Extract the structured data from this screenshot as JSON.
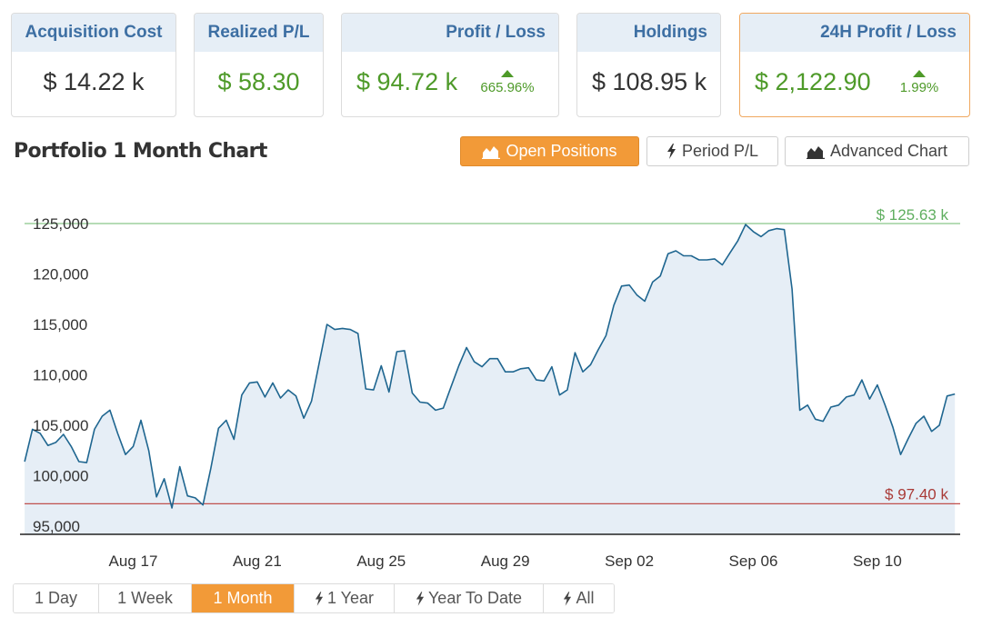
{
  "cards": {
    "acquisition": {
      "label": "Acquisition Cost",
      "value": "$ 14.22 k"
    },
    "realized": {
      "label": "Realized P/L",
      "value": "$ 58.30"
    },
    "profit": {
      "label": "Profit / Loss",
      "value": "$ 94.72 k",
      "delta": "665.96%"
    },
    "holdings": {
      "label": "Holdings",
      "value": "$ 108.95 k"
    },
    "profit24h": {
      "label": "24H Profit / Loss",
      "value": "$ 2,122.90",
      "delta": "1.99%"
    }
  },
  "chart_title": "Portfolio 1 Month Chart",
  "view_buttons": {
    "open_positions": "Open Positions",
    "period_pl": "Period P/L",
    "advanced_chart": "Advanced Chart"
  },
  "range_buttons": {
    "day": "1 Day",
    "week": "1 Week",
    "month": "1 Month",
    "year": "1 Year",
    "ytd": "Year To Date",
    "all": "All"
  },
  "colors": {
    "accent": "#f29a38",
    "header_bg": "#e6eef6",
    "header_text": "#3d6fa3",
    "positive": "#4e9a29",
    "line": "#1f6690",
    "area": "#e6eef6",
    "max_line": "#8bc88b",
    "min_line": "#c0504d"
  },
  "chart_data": {
    "type": "area",
    "title": "",
    "xlabel": "",
    "ylabel": "",
    "x_range": [
      "2023-08-13",
      "2023-09-13"
    ],
    "ylim": [
      94000,
      126000
    ],
    "y_ticks": [
      95000,
      100000,
      105000,
      110000,
      115000,
      120000,
      125000
    ],
    "y_tick_labels": [
      "95,000",
      "100,000",
      "105,000",
      "110,000",
      "115,000",
      "120,000",
      "125,000"
    ],
    "x_tick_labels": [
      {
        "date": "2023-08-17",
        "label": "Aug 17"
      },
      {
        "date": "2023-08-21",
        "label": "Aug 21"
      },
      {
        "date": "2023-08-25",
        "label": "Aug 25"
      },
      {
        "date": "2023-08-29",
        "label": "Aug 29"
      },
      {
        "date": "2023-09-02",
        "label": "Sep 02"
      },
      {
        "date": "2023-09-06",
        "label": "Sep 06"
      },
      {
        "date": "2023-09-10",
        "label": "Sep 10"
      }
    ],
    "max_line": {
      "value": 125630,
      "label": "$ 125.63 k"
    },
    "min_line": {
      "value": 97400,
      "label": "$ 97.40 k"
    },
    "series": [
      {
        "name": "",
        "points": [
          [
            "2023-08-13 12:00",
            101400
          ],
          [
            "2023-08-13 18:00",
            104600
          ],
          [
            "2023-08-14 00:00",
            104200
          ],
          [
            "2023-08-14 06:00",
            103000
          ],
          [
            "2023-08-14 12:00",
            103300
          ],
          [
            "2023-08-14 18:00",
            104100
          ],
          [
            "2023-08-15 00:00",
            102900
          ],
          [
            "2023-08-15 06:00",
            101400
          ],
          [
            "2023-08-15 12:00",
            101300
          ],
          [
            "2023-08-15 18:00",
            104600
          ],
          [
            "2023-08-16 00:00",
            105900
          ],
          [
            "2023-08-16 06:00",
            106500
          ],
          [
            "2023-08-16 12:00",
            104200
          ],
          [
            "2023-08-16 18:00",
            102100
          ],
          [
            "2023-08-17 00:00",
            102900
          ],
          [
            "2023-08-17 06:00",
            105500
          ],
          [
            "2023-08-17 12:00",
            102500
          ],
          [
            "2023-08-17 18:00",
            97900
          ],
          [
            "2023-08-18 00:00",
            99700
          ],
          [
            "2023-08-18 06:00",
            96800
          ],
          [
            "2023-08-18 12:00",
            100900
          ],
          [
            "2023-08-18 18:00",
            98000
          ],
          [
            "2023-08-19 00:00",
            97800
          ],
          [
            "2023-08-19 06:00",
            97100
          ],
          [
            "2023-08-19 12:00",
            100700
          ],
          [
            "2023-08-19 18:00",
            104700
          ],
          [
            "2023-08-20 00:00",
            105500
          ],
          [
            "2023-08-20 06:00",
            103600
          ],
          [
            "2023-08-20 12:00",
            108000
          ],
          [
            "2023-08-20 18:00",
            109200
          ],
          [
            "2023-08-21 00:00",
            109300
          ],
          [
            "2023-08-21 06:00",
            107800
          ],
          [
            "2023-08-21 12:00",
            109200
          ],
          [
            "2023-08-21 18:00",
            107700
          ],
          [
            "2023-08-22 00:00",
            108500
          ],
          [
            "2023-08-22 06:00",
            107900
          ],
          [
            "2023-08-22 12:00",
            105700
          ],
          [
            "2023-08-22 18:00",
            107400
          ],
          [
            "2023-08-23 00:00",
            111200
          ],
          [
            "2023-08-23 06:00",
            115000
          ],
          [
            "2023-08-23 12:00",
            114500
          ],
          [
            "2023-08-23 18:00",
            114600
          ],
          [
            "2023-08-24 00:00",
            114500
          ],
          [
            "2023-08-24 06:00",
            114100
          ],
          [
            "2023-08-24 12:00",
            108600
          ],
          [
            "2023-08-24 18:00",
            108500
          ],
          [
            "2023-08-25 00:00",
            110900
          ],
          [
            "2023-08-25 06:00",
            108300
          ],
          [
            "2023-08-25 12:00",
            112300
          ],
          [
            "2023-08-25 18:00",
            112400
          ],
          [
            "2023-08-26 00:00",
            108200
          ],
          [
            "2023-08-26 06:00",
            107300
          ],
          [
            "2023-08-26 12:00",
            107200
          ],
          [
            "2023-08-26 18:00",
            106500
          ],
          [
            "2023-08-27 00:00",
            106700
          ],
          [
            "2023-08-27 06:00",
            108800
          ],
          [
            "2023-08-27 12:00",
            110900
          ],
          [
            "2023-08-27 18:00",
            112700
          ],
          [
            "2023-08-28 00:00",
            111300
          ],
          [
            "2023-08-28 06:00",
            110800
          ],
          [
            "2023-08-28 12:00",
            111600
          ],
          [
            "2023-08-28 18:00",
            111600
          ],
          [
            "2023-08-29 00:00",
            110300
          ],
          [
            "2023-08-29 06:00",
            110300
          ],
          [
            "2023-08-29 12:00",
            110600
          ],
          [
            "2023-08-29 18:00",
            110700
          ],
          [
            "2023-08-30 00:00",
            109500
          ],
          [
            "2023-08-30 06:00",
            109400
          ],
          [
            "2023-08-30 12:00",
            110800
          ],
          [
            "2023-08-30 18:00",
            108000
          ],
          [
            "2023-08-31 00:00",
            108500
          ],
          [
            "2023-08-31 06:00",
            112200
          ],
          [
            "2023-08-31 12:00",
            110300
          ],
          [
            "2023-08-31 18:00",
            111000
          ],
          [
            "2023-09-01 00:00",
            112500
          ],
          [
            "2023-09-01 06:00",
            113900
          ],
          [
            "2023-09-01 12:00",
            116900
          ],
          [
            "2023-09-01 18:00",
            118800
          ],
          [
            "2023-09-02 00:00",
            118900
          ],
          [
            "2023-09-02 06:00",
            117900
          ],
          [
            "2023-09-02 12:00",
            117300
          ],
          [
            "2023-09-02 18:00",
            119200
          ],
          [
            "2023-09-03 00:00",
            119800
          ],
          [
            "2023-09-03 06:00",
            122000
          ],
          [
            "2023-09-03 12:00",
            122300
          ],
          [
            "2023-09-03 18:00",
            121800
          ],
          [
            "2023-09-04 00:00",
            121800
          ],
          [
            "2023-09-04 06:00",
            121400
          ],
          [
            "2023-09-04 12:00",
            121400
          ],
          [
            "2023-09-04 18:00",
            121500
          ],
          [
            "2023-09-05 00:00",
            120900
          ],
          [
            "2023-09-05 06:00",
            122100
          ],
          [
            "2023-09-05 12:00",
            123300
          ],
          [
            "2023-09-05 18:00",
            124900
          ],
          [
            "2023-09-06 00:00",
            124200
          ],
          [
            "2023-09-06 06:00",
            123700
          ],
          [
            "2023-09-06 12:00",
            124300
          ],
          [
            "2023-09-06 18:00",
            124500
          ],
          [
            "2023-09-07 00:00",
            124400
          ],
          [
            "2023-09-07 06:00",
            118500
          ],
          [
            "2023-09-07 12:00",
            106500
          ],
          [
            "2023-09-07 18:00",
            107000
          ],
          [
            "2023-09-08 00:00",
            105600
          ],
          [
            "2023-09-08 06:00",
            105400
          ],
          [
            "2023-09-08 12:00",
            106800
          ],
          [
            "2023-09-08 18:00",
            107000
          ],
          [
            "2023-09-09 00:00",
            107800
          ],
          [
            "2023-09-09 06:00",
            108000
          ],
          [
            "2023-09-09 12:00",
            109500
          ],
          [
            "2023-09-09 18:00",
            107600
          ],
          [
            "2023-09-10 00:00",
            109000
          ],
          [
            "2023-09-10 06:00",
            107000
          ],
          [
            "2023-09-10 12:00",
            104800
          ],
          [
            "2023-09-10 18:00",
            102100
          ],
          [
            "2023-09-11 00:00",
            103700
          ],
          [
            "2023-09-11 06:00",
            105200
          ],
          [
            "2023-09-11 12:00",
            105900
          ],
          [
            "2023-09-11 18:00",
            104400
          ],
          [
            "2023-09-12 00:00",
            105000
          ],
          [
            "2023-09-12 06:00",
            107900
          ],
          [
            "2023-09-12 12:00",
            108100
          ]
        ]
      }
    ]
  }
}
